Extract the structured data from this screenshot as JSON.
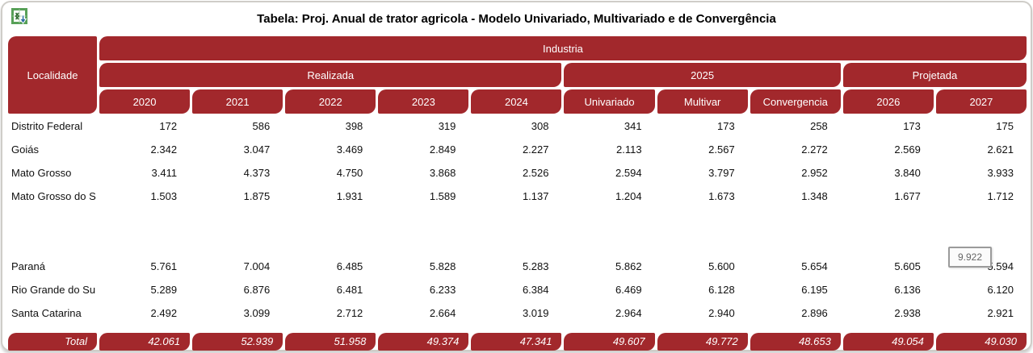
{
  "title": {
    "text": "Tabela: Proj. Anual de trator agricola - Modelo Univariado, Multivariado e de Convergência"
  },
  "toolbar": {
    "export_icon": "excel-export-icon"
  },
  "colors": {
    "header_bg": "#A2282C",
    "header_text": "#FFFFFF",
    "panel_border": "#CFCDC8",
    "body_text": "#101010"
  },
  "tooltip": {
    "text": "9.922"
  },
  "table": {
    "corner_label": "Localidade",
    "top_header": "Industria",
    "groups": [
      {
        "label": "Realizada",
        "span": 5
      },
      {
        "label": "2025",
        "span": 3
      },
      {
        "label": "Projetada",
        "span": 2
      }
    ],
    "columns": [
      "2020",
      "2021",
      "2022",
      "2023",
      "2024",
      "Univariado",
      "Multivar",
      "Convergencia",
      "2026",
      "2027"
    ],
    "rows": [
      {
        "label": "Distrito Federal",
        "values": [
          "172",
          "586",
          "398",
          "319",
          "308",
          "341",
          "173",
          "258",
          "173",
          "175"
        ]
      },
      {
        "label": "Goiás",
        "values": [
          "2.342",
          "3.047",
          "3.469",
          "2.849",
          "2.227",
          "2.113",
          "2.567",
          "2.272",
          "2.569",
          "2.621"
        ]
      },
      {
        "label": "Mato Grosso",
        "values": [
          "3.411",
          "4.373",
          "4.750",
          "3.868",
          "2.526",
          "2.594",
          "3.797",
          "2.952",
          "3.840",
          "3.933"
        ]
      },
      {
        "label": "Mato Grosso do S",
        "values": [
          "1.503",
          "1.875",
          "1.931",
          "1.589",
          "1.137",
          "1.204",
          "1.673",
          "1.348",
          "1.677",
          "1.712"
        ]
      },
      {
        "label": "",
        "values": [
          "",
          "",
          "",
          "",
          "",
          "",
          "",
          "",
          "",
          ""
        ]
      },
      {
        "label": "",
        "values": [
          "",
          "",
          "",
          "",
          "",
          "",
          "",
          "",
          "",
          ""
        ]
      },
      {
        "label": "Paraná",
        "values": [
          "5.761",
          "7.004",
          "6.485",
          "5.828",
          "5.283",
          "5.862",
          "5.600",
          "5.654",
          "5.605",
          "5.594"
        ]
      },
      {
        "label": "Rio Grande do Su",
        "values": [
          "5.289",
          "6.876",
          "6.481",
          "6.233",
          "6.384",
          "6.469",
          "6.128",
          "6.195",
          "6.136",
          "6.120"
        ]
      },
      {
        "label": "Santa Catarina",
        "values": [
          "2.492",
          "3.099",
          "2.712",
          "2.664",
          "3.019",
          "2.964",
          "2.940",
          "2.896",
          "2.938",
          "2.921"
        ]
      }
    ],
    "total": {
      "label": "Total",
      "values": [
        "42.061",
        "52.939",
        "51.958",
        "49.374",
        "47.341",
        "49.607",
        "49.772",
        "48.653",
        "49.054",
        "49.030"
      ]
    }
  }
}
